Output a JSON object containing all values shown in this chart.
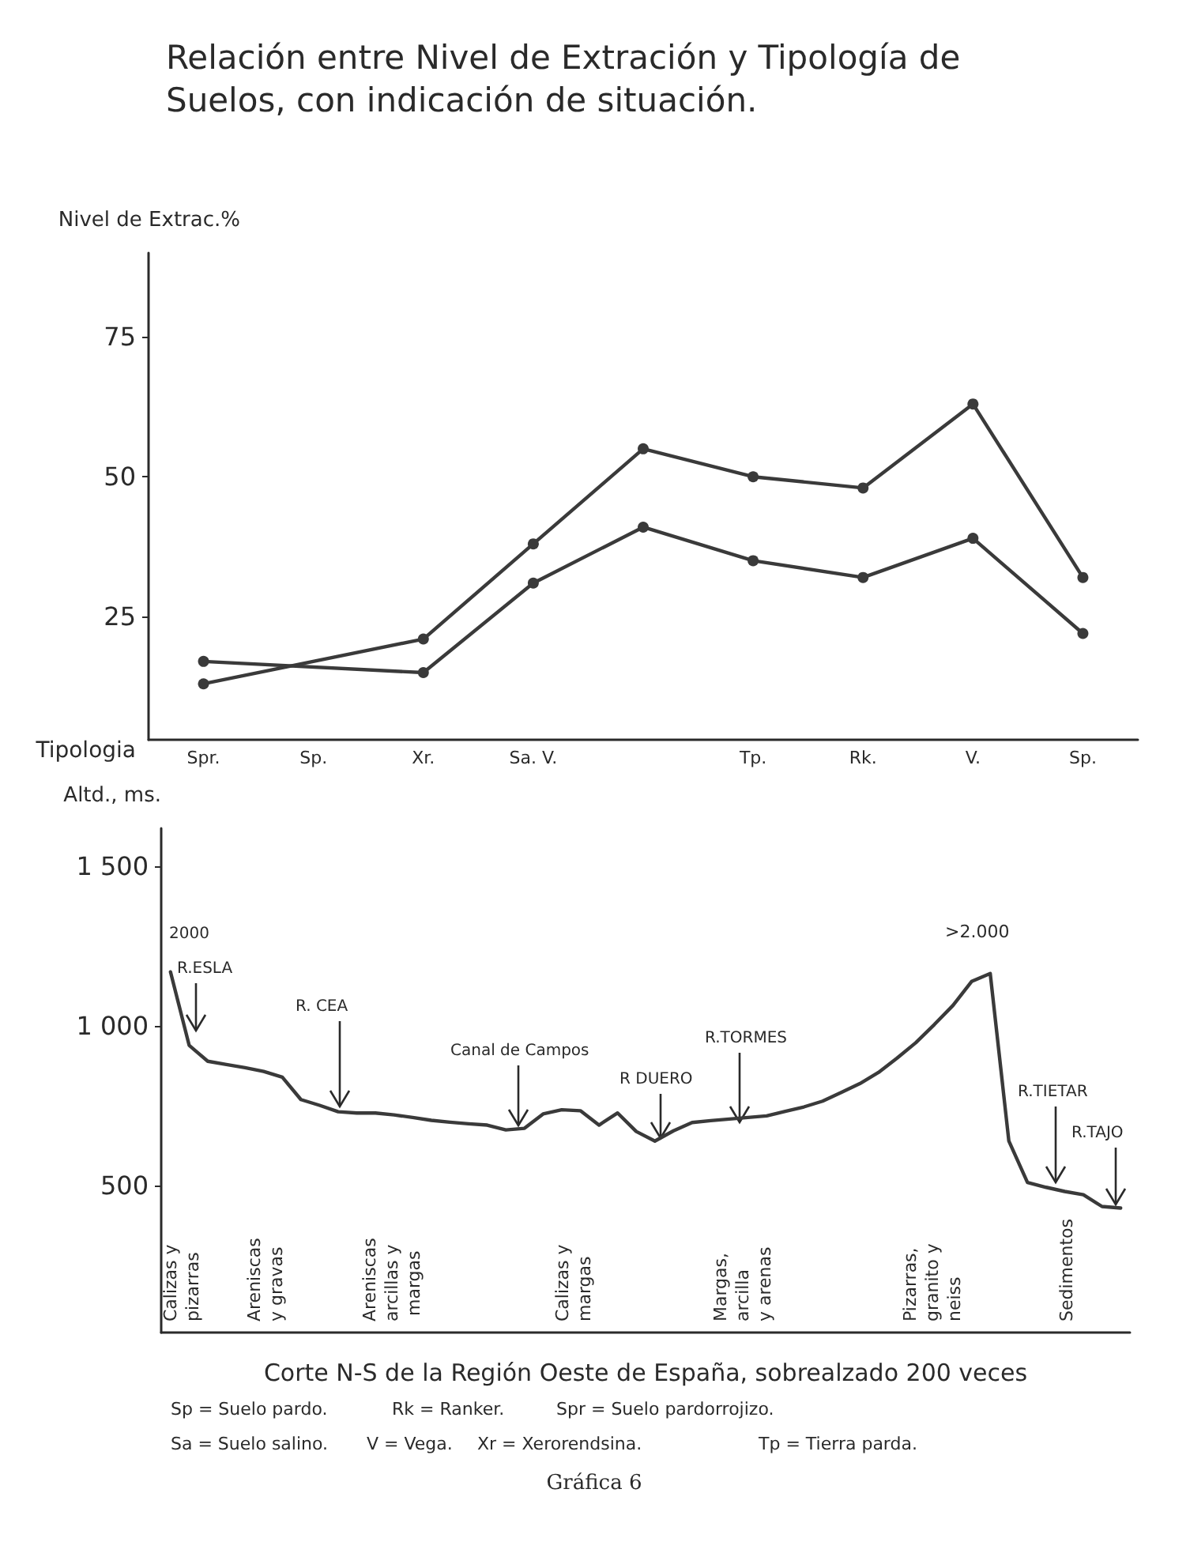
{
  "chart_data": [
    {
      "type": "line",
      "title": "Relación entre Nivel de Extración y Tipología de Suelos, con indicación de situación.",
      "ylabel": "Nivel de Extrac.%",
      "xlabel": "Tipologia",
      "categories": [
        "Spr.",
        "Sp.",
        "Xr.",
        "Sa. V.",
        null,
        "Tp.",
        "Rk.",
        "V.",
        "Sp."
      ],
      "series": [
        {
          "color": "#3a3a3a",
          "values": [
            13,
            null,
            21,
            38,
            55,
            50,
            48,
            63,
            32
          ]
        },
        {
          "color": "#3a3a3a",
          "values": [
            17,
            null,
            15,
            31,
            41,
            35,
            32,
            39,
            22
          ]
        }
      ],
      "ylim": [
        3,
        90
      ],
      "yticks": [
        25,
        50,
        75
      ],
      "marker": "circle"
    },
    {
      "type": "line",
      "ylabel": "Altd., ms.",
      "xlabel": "Corte N-S de la Región Oeste de España, sobrealzado 200 veces",
      "categories": [
        null,
        null,
        null,
        null,
        null,
        null,
        null,
        null,
        null,
        null,
        null,
        null,
        null,
        null,
        null,
        null,
        null,
        null,
        null,
        null,
        null,
        null,
        null,
        null,
        null,
        null,
        null,
        null,
        null,
        null,
        null,
        null,
        null,
        null,
        null,
        null,
        null,
        null,
        null,
        null,
        null,
        null,
        null,
        null,
        null,
        null,
        null,
        null,
        null,
        null,
        null,
        null
      ],
      "series": [
        {
          "color": "#3a3a3a",
          "values": [
            1170,
            940,
            890,
            880,
            870,
            858,
            840,
            770,
            752,
            732,
            728,
            728,
            722,
            714,
            705,
            699,
            694,
            690,
            675,
            680,
            725,
            738,
            735,
            690,
            728,
            670,
            640,
            672,
            698,
            704,
            709,
            714,
            719,
            733,
            747,
            765,
            792,
            820,
            855,
            900,
            948,
            1005,
            1065,
            1140,
            1165,
            640,
            510,
            495,
            482,
            472,
            435,
            430
          ]
        }
      ],
      "ylim": [
        40,
        1620
      ],
      "yticks": [
        {
          "value": 500,
          "label": "500"
        },
        {
          "value": 1000,
          "label": "1 000"
        },
        {
          "value": 1500,
          "label": "1 500"
        }
      ],
      "annotations": [
        "2000",
        ">2.000",
        "R.ESLA",
        "R. CEA",
        "Canal de Campos",
        "R DUERO",
        "R.TORMES",
        "R.TIETAR",
        "R.TAJO",
        "Calizas y pizarras",
        "Areniscas y gravas",
        "Areniscas arcillas y margas",
        "Calizas y margas",
        "Margas, arcilla y arenas",
        "Pizarras, granito y neiss",
        "Sedimentos",
        "Sp = Suelo pardo.",
        "Rk = Ranker.",
        "Spr = Suelo pardorrojizo.",
        "Sa = Suelo salino.",
        "V = Vega.",
        "Xr = Xerorendsina.",
        "Tp = Tierra parda.",
        "Gráfica 6"
      ]
    }
  ]
}
